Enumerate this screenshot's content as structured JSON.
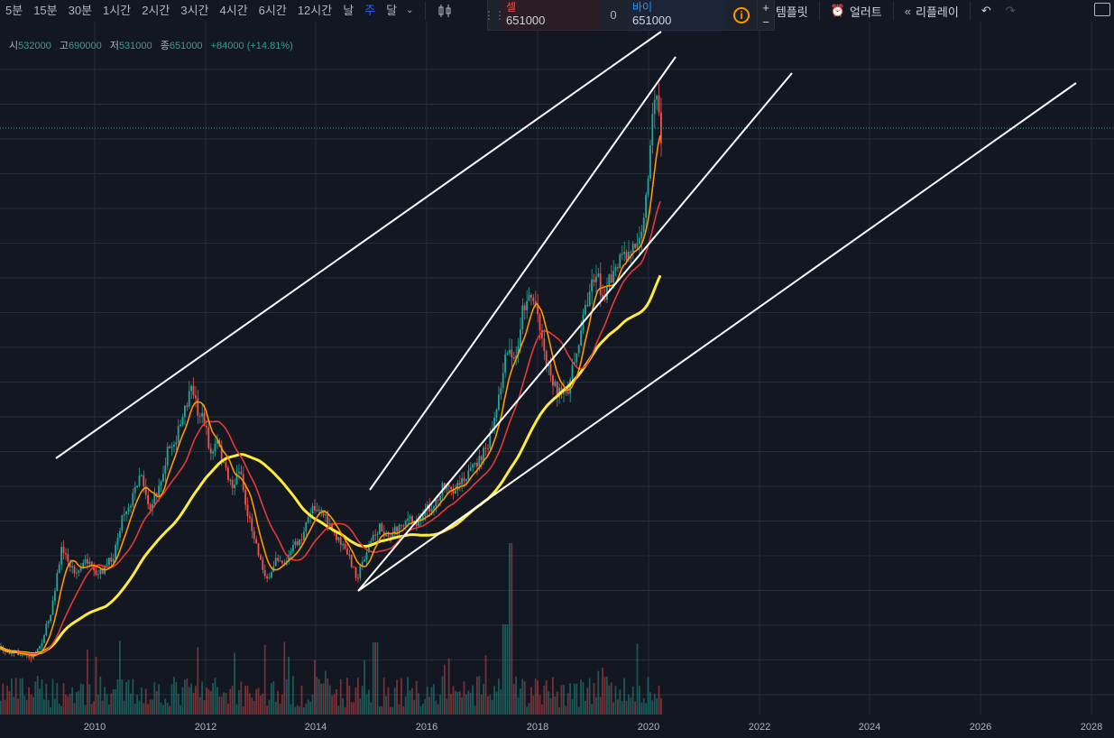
{
  "toolbar": {
    "timeframes": [
      "5분",
      "15분",
      "30분",
      "1시간",
      "2시간",
      "3시간",
      "4시간",
      "6시간",
      "12시간",
      "날",
      "주",
      "달"
    ],
    "active_timeframe": "주",
    "template_label": "템플릿",
    "alert_label": "얼러트",
    "replay_label": "리플레이"
  },
  "trade": {
    "sell_label": "셀",
    "sell_price": "651000",
    "spread": "0",
    "buy_label": "바이",
    "buy_price": "651000",
    "info_symbol": "i",
    "plus": "+",
    "minus": "−"
  },
  "ohlc": {
    "open_label": "시",
    "open": "532000",
    "high_label": "고",
    "high": "690000",
    "low_label": "저",
    "low": "531000",
    "close_label": "종",
    "close": "651000",
    "change": "+84000 (+14.81%)"
  },
  "colors": {
    "background": "#131722",
    "grid": "#262b38",
    "up": "#26a69a",
    "down": "#ef5350",
    "ma_short": "#ff9800",
    "ma_mid": "#e53935",
    "ma_long": "#ffeb3b",
    "trendline": "#ffffff",
    "price_line": "#26a69a"
  },
  "chart_data": {
    "type": "candlestick",
    "x_axis_ticks": [
      "2010",
      "2012",
      "2014",
      "2016",
      "2018",
      "2020",
      "2022",
      "2024",
      "2026",
      "2028"
    ],
    "last_price": 651000,
    "grid": true,
    "indicators": [
      "short moving average",
      "medium moving average",
      "long moving average",
      "volume"
    ],
    "trendlines": 4
  }
}
